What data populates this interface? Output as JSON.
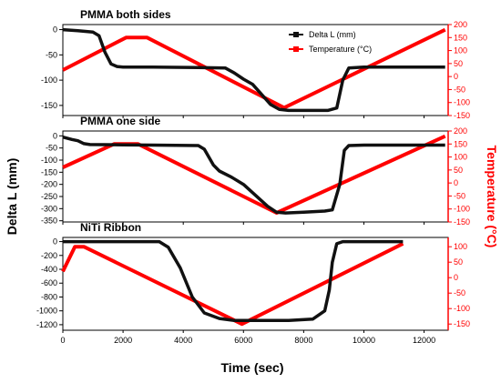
{
  "chart_data": {
    "type": "line",
    "xlabel": "Time (sec)",
    "ylabel_left": "Delta L (mm)",
    "ylabel_right": "Temperature (°C)",
    "xlim": [
      0,
      12800
    ],
    "x_ticks": [
      "0",
      "2000",
      "4000",
      "6000",
      "8000",
      "10000",
      "12000"
    ],
    "legend": {
      "placement": "top-right of first panel",
      "entries": [
        "Delta L (mm)",
        "Temperature (°C)"
      ]
    },
    "colors": {
      "delta": "#111111",
      "temp": "#ff0000"
    },
    "panels": [
      {
        "title": "PMMA both sides",
        "left_ylim": [
          -170,
          10
        ],
        "left_ticks": [
          0,
          -50,
          -100,
          -150
        ],
        "right_ylim": [
          -150,
          200
        ],
        "right_ticks": [
          200,
          150,
          100,
          50,
          0,
          -50,
          -100,
          -150
        ],
        "delta_series": {
          "name": "Delta L (mm)",
          "points": [
            [
              0,
              0
            ],
            [
              500,
              -2
            ],
            [
              1000,
              -5
            ],
            [
              1200,
              -12
            ],
            [
              1400,
              -45
            ],
            [
              1600,
              -68
            ],
            [
              1800,
              -73
            ],
            [
              2000,
              -74
            ],
            [
              3000,
              -74
            ],
            [
              4500,
              -75
            ],
            [
              5400,
              -76
            ],
            [
              5700,
              -86
            ],
            [
              6000,
              -98
            ],
            [
              6300,
              -108
            ],
            [
              6600,
              -128
            ],
            [
              6900,
              -148
            ],
            [
              7200,
              -158
            ],
            [
              7500,
              -160
            ],
            [
              8000,
              -160
            ],
            [
              8800,
              -160
            ],
            [
              9100,
              -155
            ],
            [
              9300,
              -100
            ],
            [
              9500,
              -76
            ],
            [
              10000,
              -74
            ],
            [
              11000,
              -74
            ],
            [
              12700,
              -74
            ]
          ]
        },
        "temp_series": {
          "name": "Temperature (°C)",
          "points": [
            [
              0,
              25
            ],
            [
              2100,
              150
            ],
            [
              2800,
              150
            ],
            [
              7350,
              -120
            ],
            [
              12700,
              180
            ]
          ]
        }
      },
      {
        "title": "PMMA one side",
        "left_ylim": [
          -355,
          20
        ],
        "left_ticks": [
          0,
          -50,
          -100,
          -150,
          -200,
          -250,
          -300,
          -350
        ],
        "right_ylim": [
          -150,
          200
        ],
        "right_ticks": [
          200,
          150,
          100,
          50,
          0,
          -50,
          -100,
          -150
        ],
        "delta_series": {
          "name": "Delta L (mm)",
          "points": [
            [
              0,
              -5
            ],
            [
              300,
              -15
            ],
            [
              500,
              -20
            ],
            [
              700,
              -32
            ],
            [
              900,
              -36
            ],
            [
              2000,
              -37
            ],
            [
              3000,
              -38
            ],
            [
              4500,
              -40
            ],
            [
              4700,
              -55
            ],
            [
              5000,
              -120
            ],
            [
              5200,
              -145
            ],
            [
              5600,
              -170
            ],
            [
              6000,
              -200
            ],
            [
              6400,
              -245
            ],
            [
              6800,
              -290
            ],
            [
              7100,
              -315
            ],
            [
              7400,
              -318
            ],
            [
              8000,
              -315
            ],
            [
              8700,
              -310
            ],
            [
              8950,
              -305
            ],
            [
              9200,
              -200
            ],
            [
              9350,
              -60
            ],
            [
              9500,
              -40
            ],
            [
              10000,
              -38
            ],
            [
              11000,
              -38
            ],
            [
              12700,
              -38
            ]
          ]
        },
        "temp_series": {
          "name": "Temperature (°C)",
          "points": [
            [
              0,
              60
            ],
            [
              1700,
              150
            ],
            [
              2500,
              150
            ],
            [
              7100,
              -115
            ],
            [
              12700,
              180
            ]
          ]
        }
      },
      {
        "title": "NiTi Ribbon",
        "left_ylim": [
          -1280,
          60
        ],
        "left_ticks": [
          0,
          -200,
          -400,
          -600,
          -800,
          -1000,
          -1200
        ],
        "right_ylim": [
          -170,
          130
        ],
        "right_ticks": [
          100,
          50,
          0,
          -50,
          -100,
          -150
        ],
        "delta_series": {
          "name": "Delta L (mm)",
          "points": [
            [
              0,
              0
            ],
            [
              1000,
              0
            ],
            [
              2000,
              0
            ],
            [
              3200,
              0
            ],
            [
              3500,
              -80
            ],
            [
              3900,
              -380
            ],
            [
              4300,
              -800
            ],
            [
              4700,
              -1030
            ],
            [
              5200,
              -1110
            ],
            [
              5700,
              -1140
            ],
            [
              6500,
              -1140
            ],
            [
              7500,
              -1140
            ],
            [
              8300,
              -1120
            ],
            [
              8700,
              -1000
            ],
            [
              8850,
              -700
            ],
            [
              8950,
              -300
            ],
            [
              9100,
              -30
            ],
            [
              9300,
              0
            ],
            [
              10000,
              0
            ],
            [
              11300,
              0
            ]
          ]
        },
        "temp_series": {
          "name": "Temperature (°C)",
          "points": [
            [
              0,
              20
            ],
            [
              400,
              100
            ],
            [
              700,
              100
            ],
            [
              5950,
              -150
            ],
            [
              11300,
              110
            ]
          ]
        }
      }
    ]
  }
}
